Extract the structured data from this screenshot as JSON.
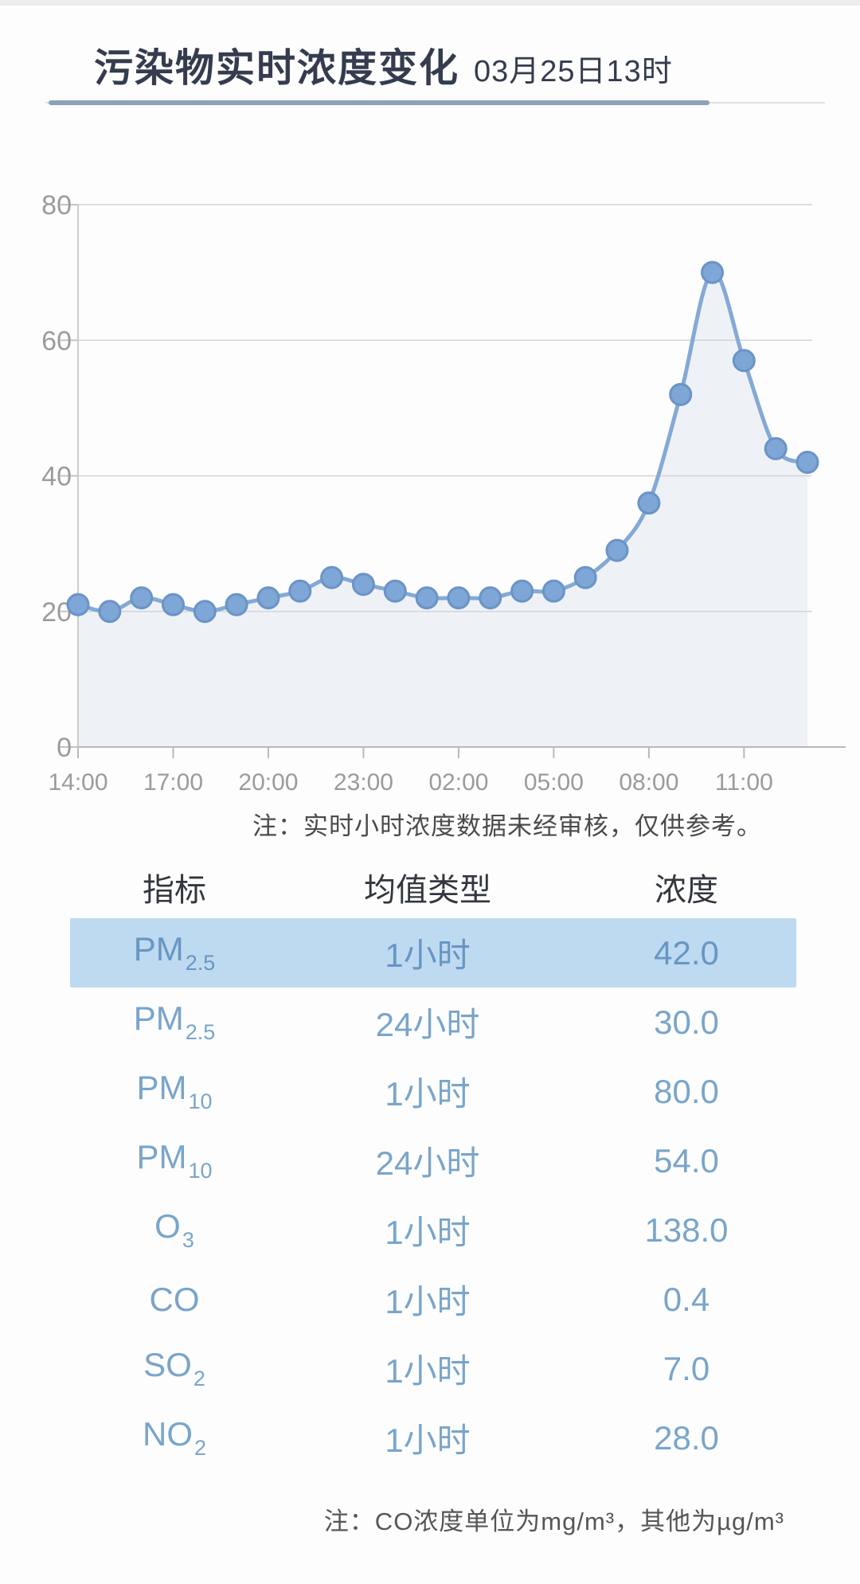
{
  "header": {
    "title": "污染物实时浓度变化",
    "date": "03月25日13时"
  },
  "chart_data": {
    "type": "line",
    "title": "污染物实时浓度变化",
    "x": [
      "14:00",
      "15:00",
      "16:00",
      "17:00",
      "18:00",
      "19:00",
      "20:00",
      "21:00",
      "22:00",
      "23:00",
      "00:00",
      "01:00",
      "02:00",
      "03:00",
      "04:00",
      "05:00",
      "06:00",
      "07:00",
      "08:00",
      "09:00",
      "10:00",
      "11:00",
      "12:00",
      "13:00"
    ],
    "values": [
      21,
      20,
      22,
      21,
      20,
      21,
      22,
      23,
      25,
      24,
      23,
      22,
      22,
      22,
      23,
      23,
      25,
      29,
      36,
      52,
      70,
      57,
      44,
      42
    ],
    "ylim": [
      0,
      80
    ],
    "y_ticks": [
      0,
      20,
      40,
      60,
      80
    ],
    "x_tick_labels": [
      "14:00",
      "17:00",
      "20:00",
      "23:00",
      "02:00",
      "05:00",
      "08:00",
      "11:00"
    ],
    "x_tick_every": 3,
    "grid": true,
    "legend": false,
    "xlabel": "",
    "ylabel": ""
  },
  "chart_note": "注：实时小时浓度数据未经审核，仅供参考。",
  "table": {
    "headers": [
      "指标",
      "均值类型",
      "浓度"
    ],
    "rows": [
      {
        "indicator": "PM",
        "indicator_sub": "2.5",
        "avg_type": "1小时",
        "value": "42.0",
        "highlighted": true
      },
      {
        "indicator": "PM",
        "indicator_sub": "2.5",
        "avg_type": "24小时",
        "value": "30.0",
        "highlighted": false
      },
      {
        "indicator": "PM",
        "indicator_sub": "10",
        "avg_type": "1小时",
        "value": "80.0",
        "highlighted": false
      },
      {
        "indicator": "PM",
        "indicator_sub": "10",
        "avg_type": "24小时",
        "value": "54.0",
        "highlighted": false
      },
      {
        "indicator": "O",
        "indicator_sub": "3",
        "avg_type": "1小时",
        "value": "138.0",
        "highlighted": false
      },
      {
        "indicator": "CO",
        "indicator_sub": "",
        "avg_type": "1小时",
        "value": "0.4",
        "highlighted": false
      },
      {
        "indicator": "SO",
        "indicator_sub": "2",
        "avg_type": "1小时",
        "value": "7.0",
        "highlighted": false
      },
      {
        "indicator": "NO",
        "indicator_sub": "2",
        "avg_type": "1小时",
        "value": "28.0",
        "highlighted": false
      }
    ]
  },
  "footer_note": "注：CO浓度单位为mg/m³，其他为µg/m³",
  "colors": {
    "title_text": "#343c4e",
    "underline_accent": "#8ba3b8",
    "series_line": "#84a9d6",
    "point_fill": "#7ea6d6",
    "point_stroke": "#6a94c6",
    "area_fill": "rgba(147,177,214,0.14)",
    "grid": "#d4d4d4",
    "axis": "#b9b9b9",
    "y_axis_line": "#cccccc",
    "tick_text": "#9b9b9b",
    "table_header_text": "#32373e",
    "table_row_text": "#79a5c9",
    "highlight_row_text": "#6896c3",
    "highlight_bg": "#bedaf1",
    "note_text": "#4a4a4a"
  }
}
